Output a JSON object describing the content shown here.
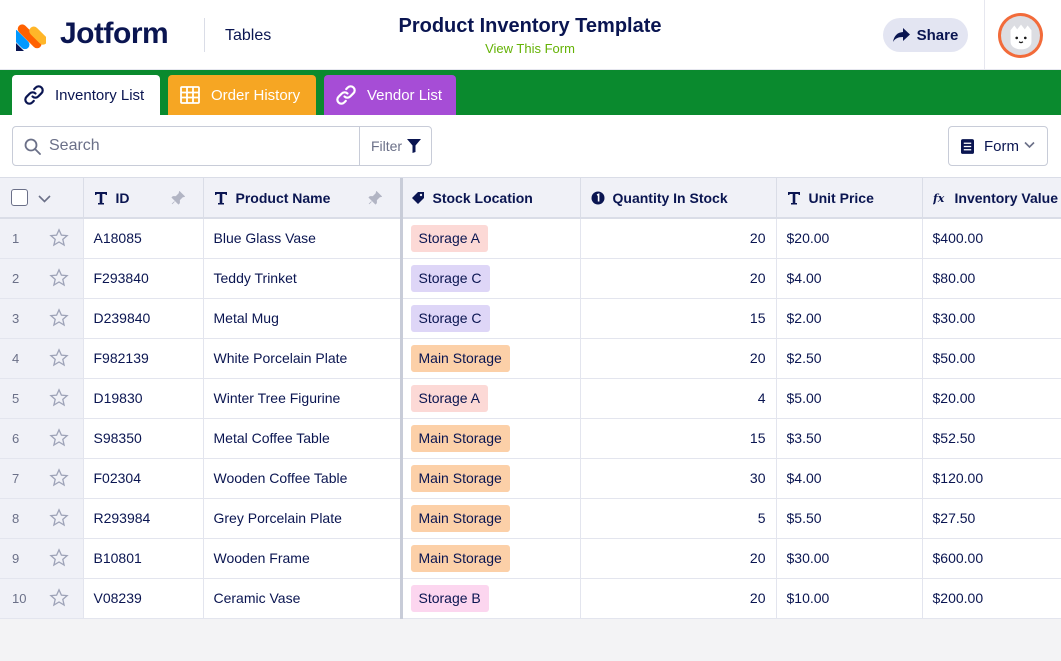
{
  "header": {
    "brand": "Jotform",
    "product": "Tables",
    "title": "Product Inventory Template",
    "subtitle": "View This Form",
    "share_label": "Share"
  },
  "tabs": [
    {
      "label": "Inventory List",
      "icon": "link-icon",
      "color": "#ffffff"
    },
    {
      "label": "Order History",
      "icon": "grid-icon",
      "color": "#f6a623"
    },
    {
      "label": "Vendor List",
      "icon": "link-icon",
      "color": "#a64dd6"
    }
  ],
  "toolbar": {
    "search_placeholder": "Search",
    "filter_label": "Filter",
    "form_label": "Form"
  },
  "columns": {
    "id": "ID",
    "product_name": "Product Name",
    "stock_location": "Stock Location",
    "quantity": "Quantity In Stock",
    "unit_price": "Unit Price",
    "inventory_value": "Inventory Value"
  },
  "location_colors": {
    "Storage A": "#fcd9d6",
    "Storage B": "#fcd6ef",
    "Storage C": "#ded6f7",
    "Main Storage": "#fcd0a8"
  },
  "rows": [
    {
      "n": "1",
      "id": "A18085",
      "name": "Blue Glass Vase",
      "location": "Storage A",
      "qty": "20",
      "price": "$20.00",
      "value": "$400.00"
    },
    {
      "n": "2",
      "id": "F293840",
      "name": "Teddy Trinket",
      "location": "Storage C",
      "qty": "20",
      "price": "$4.00",
      "value": "$80.00"
    },
    {
      "n": "3",
      "id": "D239840",
      "name": "Metal Mug",
      "location": "Storage C",
      "qty": "15",
      "price": "$2.00",
      "value": "$30.00"
    },
    {
      "n": "4",
      "id": "F982139",
      "name": "White Porcelain Plate",
      "location": "Main Storage",
      "qty": "20",
      "price": "$2.50",
      "value": "$50.00"
    },
    {
      "n": "5",
      "id": "D19830",
      "name": "Winter Tree Figurine",
      "location": "Storage A",
      "qty": "4",
      "price": "$5.00",
      "value": "$20.00"
    },
    {
      "n": "6",
      "id": "S98350",
      "name": "Metal Coffee Table",
      "location": "Main Storage",
      "qty": "15",
      "price": "$3.50",
      "value": "$52.50"
    },
    {
      "n": "7",
      "id": "F02304",
      "name": "Wooden Coffee Table",
      "location": "Main Storage",
      "qty": "30",
      "price": "$4.00",
      "value": "$120.00"
    },
    {
      "n": "8",
      "id": "R293984",
      "name": "Grey Porcelain Plate",
      "location": "Main Storage",
      "qty": "5",
      "price": "$5.50",
      "value": "$27.50"
    },
    {
      "n": "9",
      "id": "B10801",
      "name": "Wooden Frame",
      "location": "Main Storage",
      "qty": "20",
      "price": "$30.00",
      "value": "$600.00"
    },
    {
      "n": "10",
      "id": "V08239",
      "name": "Ceramic Vase",
      "location": "Storage B",
      "qty": "20",
      "price": "$10.00",
      "value": "$200.00"
    }
  ]
}
